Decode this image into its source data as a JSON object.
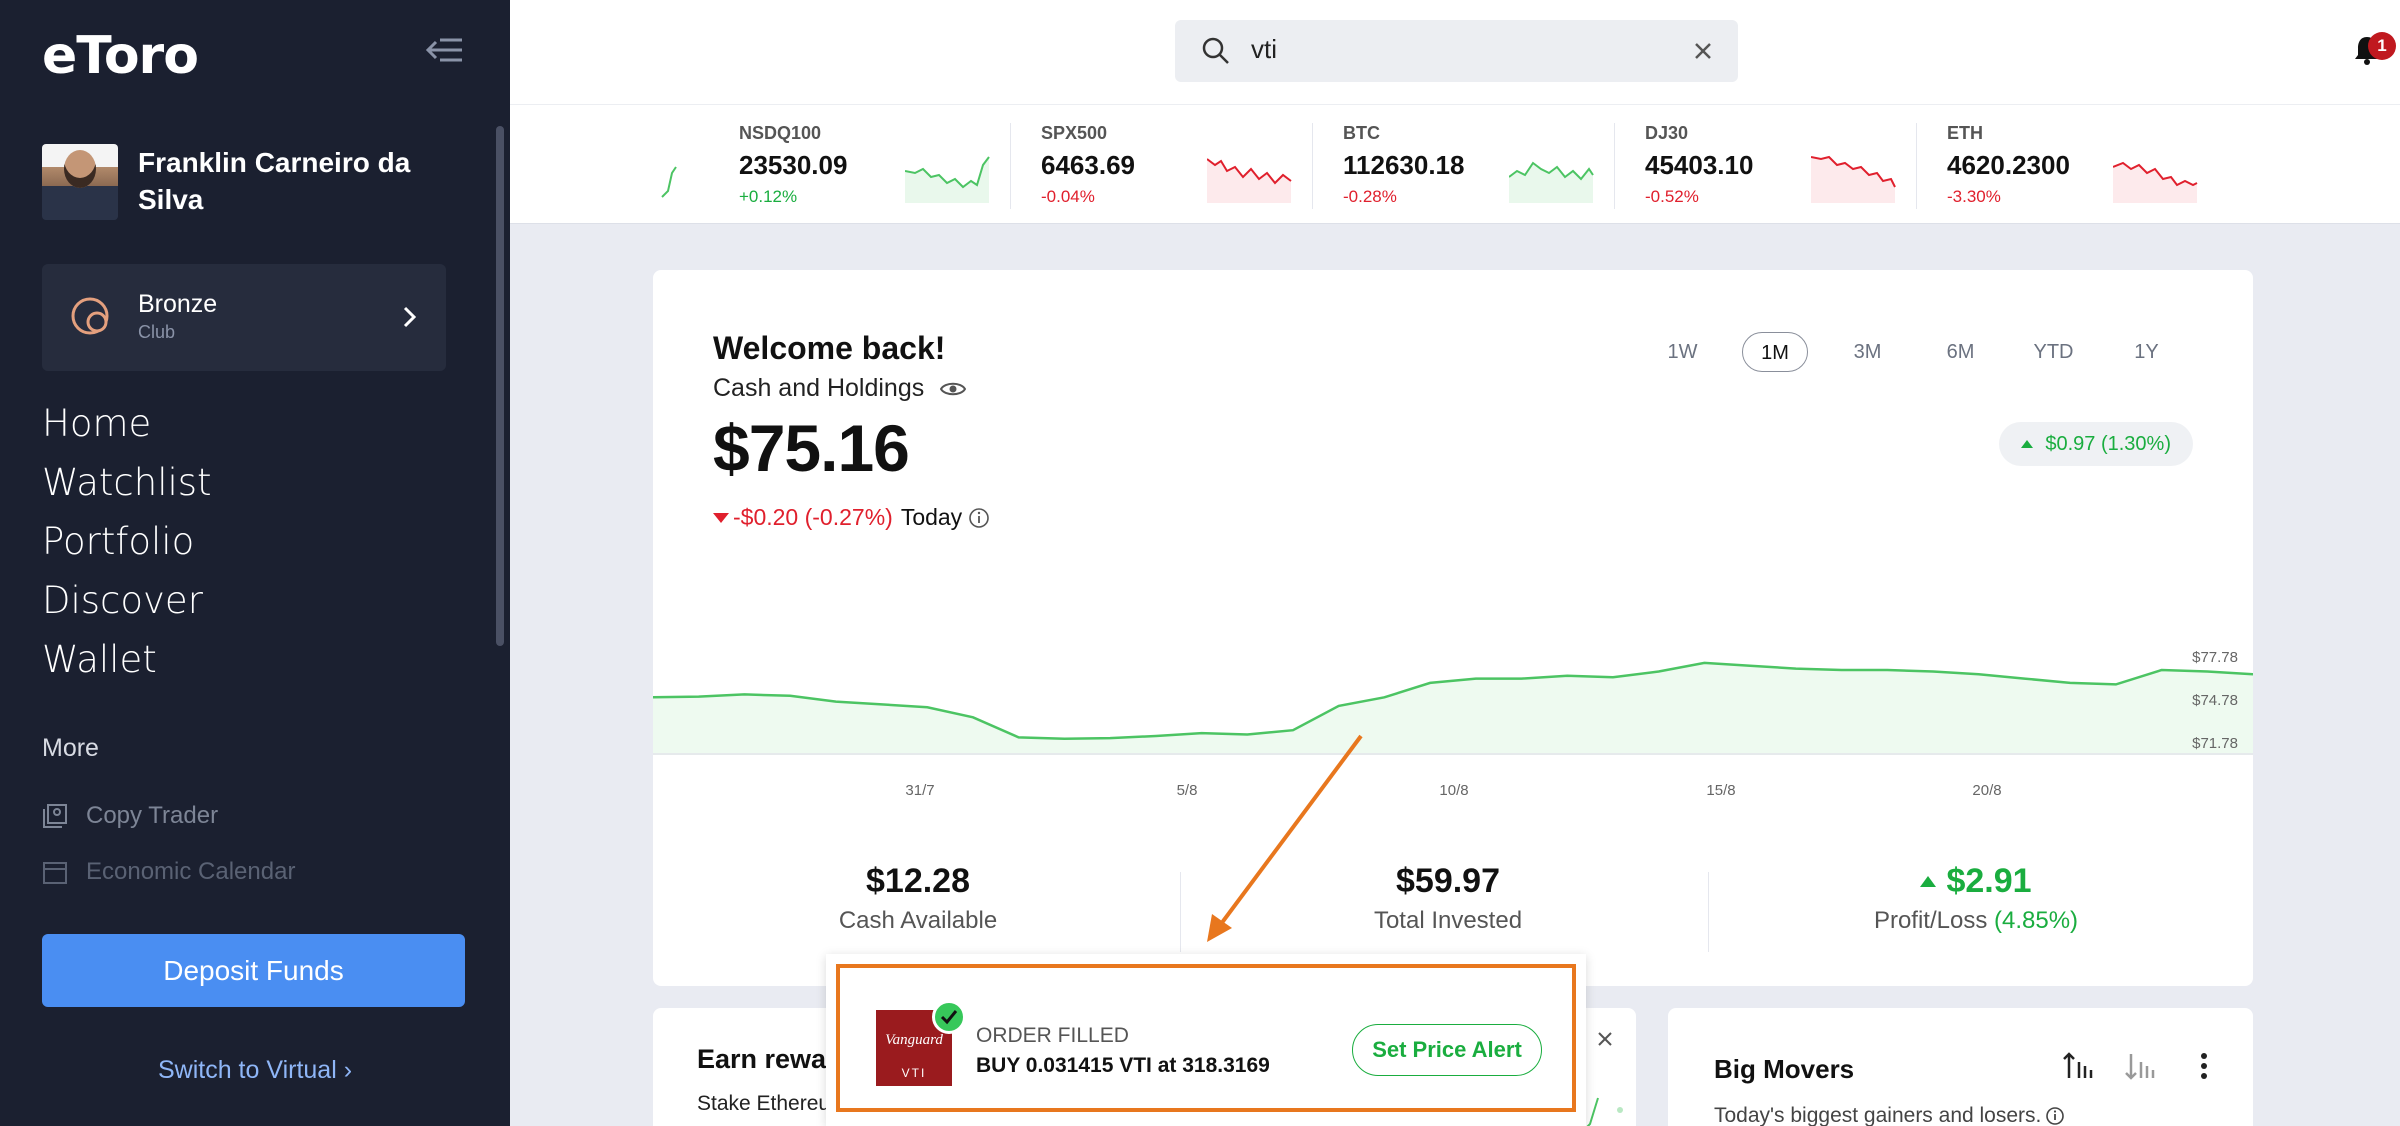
{
  "app": {
    "logo_text": "eToro"
  },
  "user": {
    "name": "Franklin Carneiro da Silva"
  },
  "club": {
    "title": "Bronze",
    "subtitle": "Club"
  },
  "nav": {
    "items": [
      "Home",
      "Watchlist",
      "Portfolio",
      "Discover",
      "Wallet"
    ]
  },
  "more": {
    "label": "More",
    "items": [
      "Copy Trader",
      "Economic Calendar"
    ]
  },
  "deposit_label": "Deposit Funds",
  "switch_virtual_label": "Switch to Virtual ›",
  "search": {
    "value": "vti"
  },
  "notifications": {
    "count": "1"
  },
  "ticker": [
    {
      "symbol": "NSDQ100",
      "price": "23530.09",
      "change": "+0.12%",
      "dir": "up"
    },
    {
      "symbol": "SPX500",
      "price": "6463.69",
      "change": "-0.04%",
      "dir": "down"
    },
    {
      "symbol": "BTC",
      "price": "112630.18",
      "change": "-0.28%",
      "dir": "down"
    },
    {
      "symbol": "DJ30",
      "price": "45403.10",
      "change": "-0.52%",
      "dir": "down"
    },
    {
      "symbol": "ETH",
      "price": "4620.2300",
      "change": "-3.30%",
      "dir": "down"
    }
  ],
  "portfolio": {
    "welcome": "Welcome back!",
    "holdings_label": "Cash and Holdings",
    "balance": "$75.16",
    "today_change": "-$0.20 (-0.27%)",
    "today_label": "Today",
    "periods": [
      "1W",
      "1M",
      "3M",
      "6M",
      "YTD",
      "1Y"
    ],
    "active_period": "1M",
    "period_change": "$0.97 (1.30%)",
    "stats": [
      {
        "value": "$12.28",
        "label": "Cash Available"
      },
      {
        "value": "$59.97",
        "label": "Total Invested"
      },
      {
        "value": "$2.91",
        "label": "Profit/Loss",
        "extra": "(4.85%)"
      }
    ]
  },
  "chart_data": {
    "type": "area",
    "x_ticks": [
      "31/7",
      "5/8",
      "10/8",
      "15/8",
      "20/8"
    ],
    "y_ticks": [
      "$77.78",
      "$74.78",
      "$71.78"
    ],
    "ylim": [
      71.78,
      77.78
    ],
    "values": [
      74.9,
      74.95,
      75.1,
      75.0,
      74.6,
      74.4,
      74.2,
      73.5,
      72.1,
      72.0,
      72.05,
      72.2,
      72.4,
      72.3,
      72.6,
      74.3,
      74.9,
      75.9,
      76.2,
      76.2,
      76.4,
      76.3,
      76.7,
      77.3,
      77.1,
      76.9,
      76.8,
      76.8,
      76.7,
      76.5,
      76.2,
      75.9,
      75.8,
      76.8,
      76.7,
      76.5
    ],
    "color": "#4cc463"
  },
  "earn": {
    "title": "Earn rewa",
    "subtitle": "Stake Ethereu"
  },
  "movers": {
    "title": "Big Movers",
    "subtitle": "Today's biggest gainers and losers."
  },
  "toast": {
    "logo_brand": "Vanguard",
    "logo_ticker": "VTI",
    "status": "ORDER FILLED",
    "message": "BUY 0.031415 VTI at 318.3169",
    "button": "Set Price Alert"
  },
  "colors": {
    "sidebar": "#1b2030",
    "accent_blue": "#4a8ef2",
    "up": "#1aad3f",
    "down": "#e0202d",
    "highlight": "#e8771e"
  }
}
